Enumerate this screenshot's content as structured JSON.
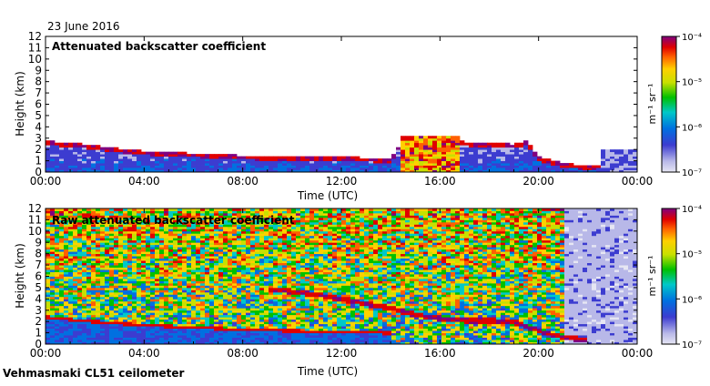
{
  "date_label": "23 June 2016",
  "instrument_label": "Vehmasmaki CL51 ceilometer",
  "chart_data": [
    {
      "type": "heatmap",
      "title": "Attenuated backscatter coefficient",
      "xlabel": "Time (UTC)",
      "ylabel": "Height (km)",
      "x_ticks": [
        "00:00",
        "04:00",
        "08:00",
        "12:00",
        "16:00",
        "20:00",
        "00:00"
      ],
      "x_range_hours": [
        0,
        24
      ],
      "ylim": [
        0,
        12
      ],
      "y_ticks": [
        0,
        1,
        2,
        3,
        4,
        5,
        6,
        7,
        8,
        9,
        10,
        11,
        12
      ],
      "colorbar": {
        "scale": "log",
        "range": [
          1e-07,
          0.0001
        ],
        "unit": "m⁻¹ sr⁻¹",
        "tick_labels": [
          "10⁻⁴",
          "10⁻⁵",
          "10⁻⁶",
          "10⁻⁷"
        ]
      },
      "features": {
        "boundary_layer_top_km": [
          [
            0,
            2.6
          ],
          [
            1,
            2.4
          ],
          [
            2,
            2.2
          ],
          [
            3,
            1.9
          ],
          [
            4,
            1.7
          ],
          [
            5,
            1.6
          ],
          [
            6,
            1.5
          ],
          [
            7,
            1.4
          ],
          [
            8,
            1.3
          ],
          [
            9,
            1.25
          ],
          [
            10,
            1.2
          ],
          [
            11,
            1.2
          ],
          [
            12,
            1.2
          ],
          [
            13,
            1.1
          ],
          [
            14,
            1.0
          ],
          [
            14.5,
            2.8
          ],
          [
            15,
            3.0
          ],
          [
            16,
            2.7
          ],
          [
            17,
            2.5
          ],
          [
            18,
            2.4
          ],
          [
            19,
            2.3
          ],
          [
            19.5,
            2.6
          ],
          [
            20,
            1.2
          ],
          [
            21,
            0.6
          ],
          [
            22,
            0.4
          ],
          [
            23,
            0.6
          ],
          [
            24,
            0.6
          ]
        ],
        "rain_event_hours": [
          14.4,
          16.8
        ],
        "rain_top_km": 3.2
      }
    },
    {
      "type": "heatmap",
      "title": "Raw attenuated backscatter coefficient",
      "xlabel": "Time (UTC)",
      "ylabel": "Height (km)",
      "x_ticks": [
        "00:00",
        "04:00",
        "08:00",
        "12:00",
        "16:00",
        "20:00",
        "00:00"
      ],
      "x_range_hours": [
        0,
        24
      ],
      "ylim": [
        0,
        12
      ],
      "y_ticks": [
        0,
        1,
        2,
        3,
        4,
        5,
        6,
        7,
        8,
        9,
        10,
        11,
        12
      ],
      "colorbar": {
        "scale": "log",
        "range": [
          1e-07,
          0.0001
        ],
        "unit": "m⁻¹ sr⁻¹",
        "tick_labels": [
          "10⁻⁴",
          "10⁻⁵",
          "10⁻⁶",
          "10⁻⁷"
        ]
      },
      "features": {
        "cloud_layer_km": [
          [
            9,
            4.9
          ],
          [
            11,
            4.4
          ],
          [
            12.5,
            3.8
          ],
          [
            14,
            3.2
          ],
          [
            15,
            2.6
          ],
          [
            16,
            2.3
          ],
          [
            17,
            2.1
          ],
          [
            18,
            2.1
          ],
          [
            19,
            2.0
          ],
          [
            20,
            1.2
          ],
          [
            21,
            0.6
          ],
          [
            22,
            0.4
          ]
        ],
        "boundary_layer_top_km": [
          [
            0,
            2.4
          ],
          [
            2,
            2.0
          ],
          [
            4,
            1.7
          ],
          [
            6,
            1.5
          ],
          [
            8,
            1.3
          ],
          [
            10,
            1.2
          ],
          [
            12,
            1.1
          ],
          [
            14,
            1.0
          ]
        ],
        "rain_event_hours": [
          14.4,
          16.8
        ],
        "clean_period_hours": [
          21.0,
          24.0
        ]
      }
    }
  ]
}
